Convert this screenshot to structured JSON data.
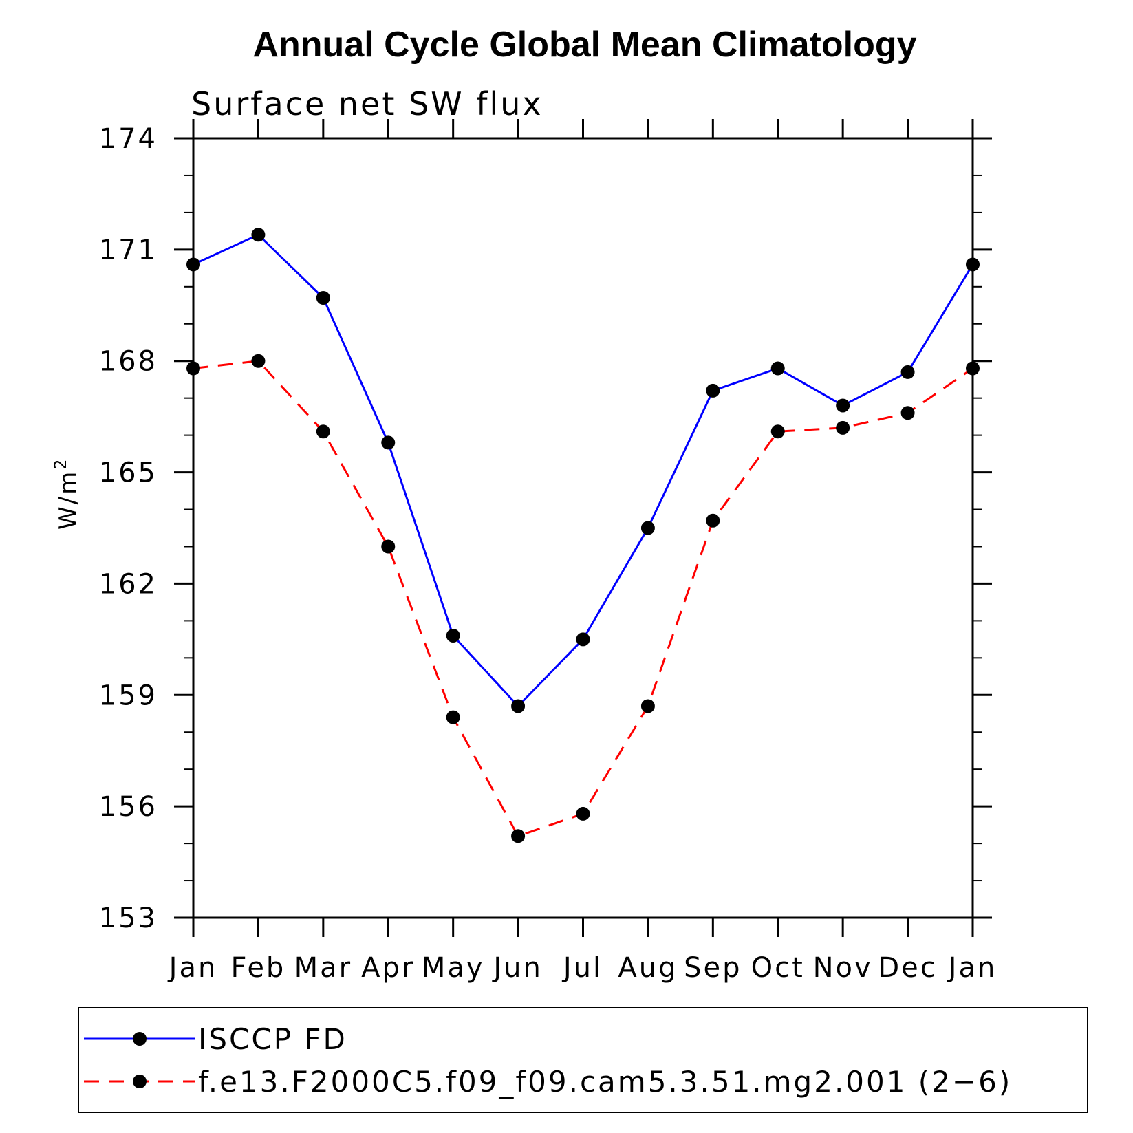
{
  "chart_data": {
    "type": "line",
    "title": "Annual Cycle Global Mean Climatology",
    "subtitle": "Surface net SW flux",
    "ylabel": "W/m",
    "ylabel_superscript": "2",
    "ylim": [
      153,
      174
    ],
    "yticks": [
      153,
      156,
      159,
      162,
      165,
      168,
      171,
      174
    ],
    "ytick_labels": [
      "153",
      "156",
      "159",
      "162",
      "165",
      "168",
      "171",
      "174"
    ],
    "categories": [
      "Jan",
      "Feb",
      "Mar",
      "Apr",
      "May",
      "Jun",
      "Jul",
      "Aug",
      "Sep",
      "Oct",
      "Nov",
      "Dec",
      "Jan"
    ],
    "series": [
      {
        "name": "ISCCP FD",
        "color": "#0000ff",
        "dash": "solid",
        "values": [
          170.6,
          171.4,
          169.7,
          165.8,
          160.6,
          158.7,
          160.5,
          163.5,
          167.2,
          167.8,
          166.8,
          167.7,
          170.6
        ]
      },
      {
        "name": "f.e13.F2000C5.f09_f09.cam5.3.51.mg2.001 (2−6)",
        "color": "#ff0000",
        "dash": "dashed",
        "values": [
          167.8,
          168.0,
          166.1,
          163.0,
          158.4,
          155.2,
          155.8,
          158.7,
          163.7,
          166.1,
          166.2,
          166.6,
          167.8
        ]
      }
    ],
    "legend_position": "bottom"
  }
}
